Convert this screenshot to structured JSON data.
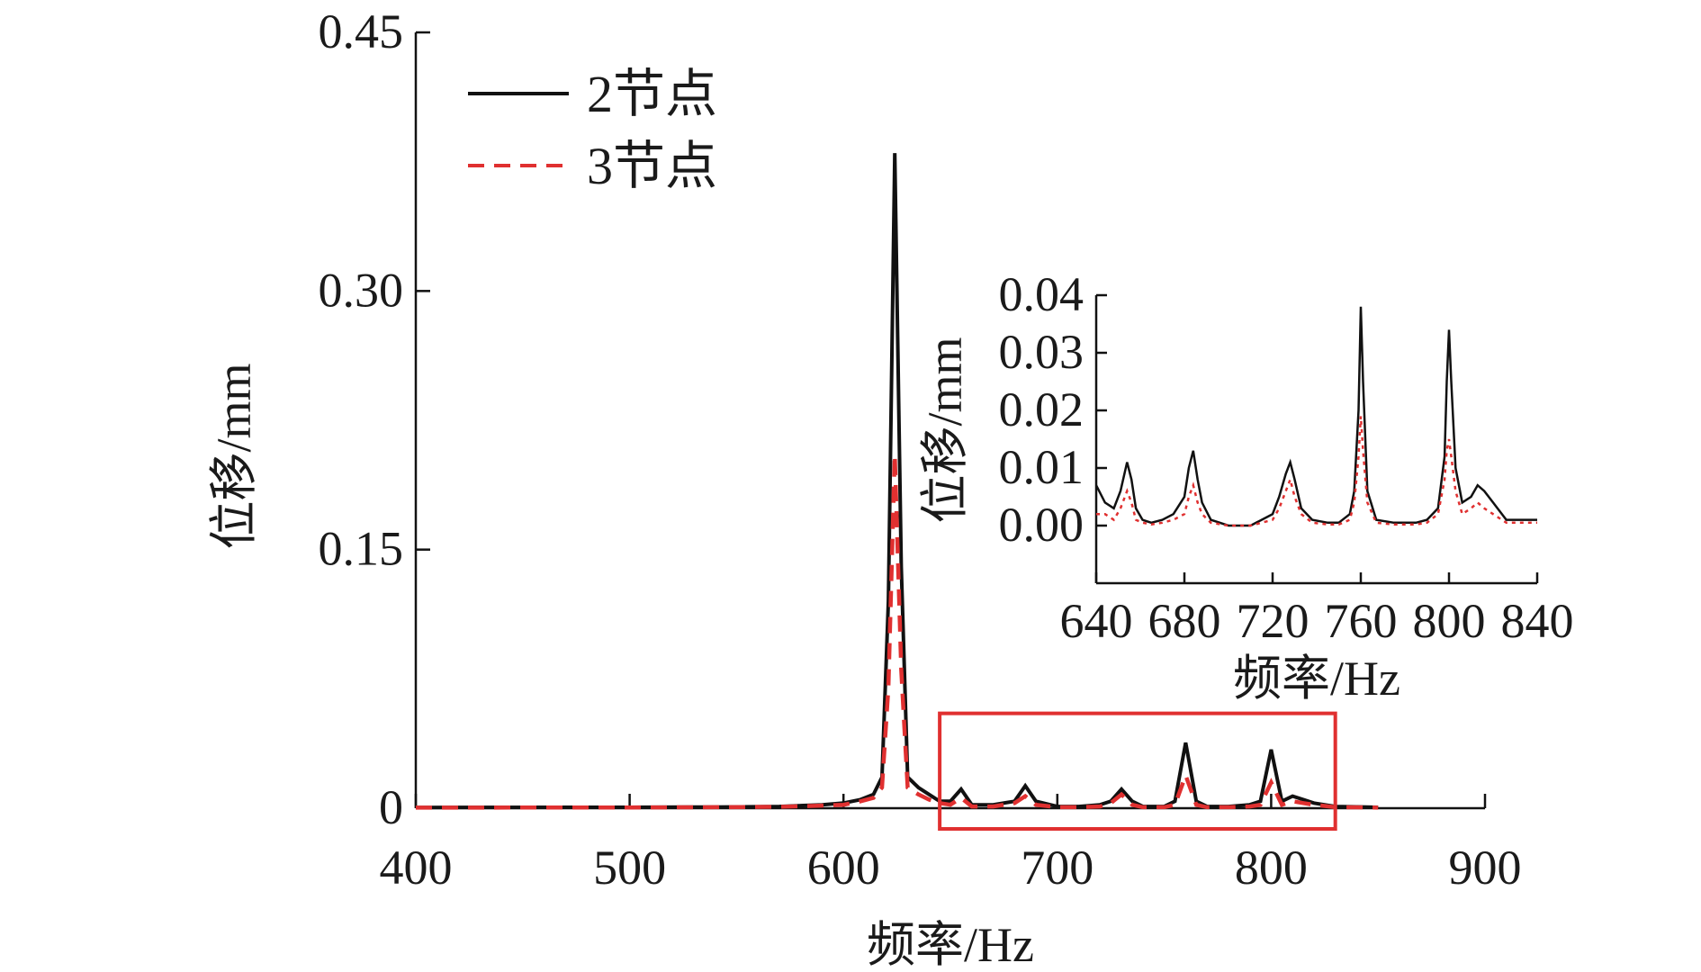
{
  "chart_data": [
    {
      "type": "line",
      "title": "",
      "xlabel": "频率/Hz",
      "ylabel": "位移/mm",
      "xlim": [
        400,
        900
      ],
      "ylim": [
        0,
        0.45
      ],
      "x_ticks": [
        400,
        500,
        600,
        700,
        800,
        900
      ],
      "y_ticks": [
        0,
        0.15,
        0.3,
        0.45
      ],
      "x_tick_labels": [
        "400",
        "500",
        "600",
        "700",
        "800",
        "900"
      ],
      "y_tick_labels": [
        "0",
        "0.15",
        "0.30",
        "0.45"
      ],
      "grid": false,
      "legend_position": "top-left",
      "highlight_box": {
        "x_range": [
          645,
          830
        ],
        "y_range": [
          -0.012,
          0.055
        ],
        "color": "#e03030"
      },
      "series": [
        {
          "name": "2节点",
          "color": "#111111",
          "style": "solid",
          "x": [
            400,
            500,
            540,
            570,
            590,
            600,
            608,
            614,
            618,
            621,
            624,
            627,
            630,
            635,
            640,
            645,
            650,
            655,
            660,
            670,
            680,
            685,
            690,
            700,
            710,
            720,
            725,
            730,
            735,
            740,
            750,
            755,
            760,
            765,
            770,
            780,
            790,
            795,
            800,
            805,
            810,
            815,
            820,
            830,
            840,
            850
          ],
          "y": [
            0.0004,
            0.0005,
            0.0007,
            0.001,
            0.002,
            0.003,
            0.005,
            0.008,
            0.018,
            0.12,
            0.38,
            0.14,
            0.018,
            0.012,
            0.008,
            0.004,
            0.004,
            0.011,
            0.002,
            0.002,
            0.004,
            0.013,
            0.004,
            0.001,
            0.001,
            0.002,
            0.004,
            0.011,
            0.004,
            0.001,
            0.001,
            0.004,
            0.038,
            0.004,
            0.001,
            0.001,
            0.002,
            0.004,
            0.034,
            0.004,
            0.007,
            0.005,
            0.003,
            0.001,
            0.0008,
            0.0005
          ]
        },
        {
          "name": "3节点",
          "color": "#e03030",
          "style": "dashed",
          "x": [
            400,
            500,
            540,
            570,
            590,
            600,
            608,
            614,
            618,
            621,
            624,
            627,
            630,
            635,
            640,
            645,
            650,
            655,
            660,
            670,
            680,
            685,
            690,
            700,
            710,
            720,
            725,
            730,
            735,
            740,
            750,
            755,
            760,
            765,
            770,
            780,
            790,
            795,
            800,
            805,
            810,
            815,
            820,
            830,
            840,
            850
          ],
          "y": [
            0.0003,
            0.0004,
            0.0006,
            0.0008,
            0.0015,
            0.002,
            0.004,
            0.006,
            0.012,
            0.07,
            0.205,
            0.08,
            0.012,
            0.008,
            0.005,
            0.003,
            0.002,
            0.006,
            0.001,
            0.001,
            0.003,
            0.007,
            0.002,
            0.0006,
            0.0006,
            0.001,
            0.003,
            0.008,
            0.002,
            0.0006,
            0.0006,
            0.002,
            0.019,
            0.002,
            0.0006,
            0.0006,
            0.001,
            0.002,
            0.015,
            0.002,
            0.004,
            0.003,
            0.002,
            0.0006,
            0.0005,
            0.0003
          ]
        }
      ]
    },
    {
      "type": "line",
      "title": "",
      "xlabel": "频率/Hz",
      "ylabel": "位移/mm",
      "xlim": [
        640,
        840
      ],
      "ylim": [
        -0.01,
        0.04
      ],
      "x_ticks": [
        640,
        680,
        720,
        760,
        800,
        840
      ],
      "y_ticks": [
        0.0,
        0.01,
        0.02,
        0.03,
        0.04
      ],
      "x_tick_labels": [
        "640",
        "680",
        "720",
        "760",
        "800",
        "840"
      ],
      "y_tick_labels": [
        "0.00",
        "0.01",
        "0.02",
        "0.03",
        "0.04"
      ],
      "grid": false,
      "series": [
        {
          "name": "",
          "color": "#111111",
          "style": "solid",
          "x": [
            640,
            644,
            648,
            651,
            654,
            656,
            658,
            661,
            665,
            670,
            675,
            680,
            682,
            684,
            686,
            688,
            692,
            700,
            710,
            715,
            720,
            723,
            726,
            728,
            730,
            733,
            738,
            745,
            750,
            755,
            757,
            759,
            760,
            761,
            763,
            767,
            775,
            785,
            790,
            795,
            798,
            799,
            800,
            801,
            803,
            806,
            810,
            813,
            816,
            820,
            826,
            840
          ],
          "y": [
            0.007,
            0.004,
            0.003,
            0.006,
            0.011,
            0.008,
            0.003,
            0.001,
            0.0005,
            0.001,
            0.002,
            0.005,
            0.01,
            0.013,
            0.008,
            0.004,
            0.001,
            0.0,
            0.0,
            0.001,
            0.002,
            0.005,
            0.009,
            0.011,
            0.008,
            0.003,
            0.001,
            0.0005,
            0.0005,
            0.002,
            0.006,
            0.02,
            0.038,
            0.025,
            0.006,
            0.001,
            0.0005,
            0.0005,
            0.001,
            0.003,
            0.012,
            0.025,
            0.034,
            0.025,
            0.01,
            0.004,
            0.005,
            0.007,
            0.006,
            0.004,
            0.001,
            0.001
          ]
        },
        {
          "name": "",
          "color": "#e03030",
          "style": "dotted",
          "x": [
            640,
            644,
            648,
            651,
            654,
            656,
            658,
            661,
            665,
            670,
            675,
            680,
            682,
            684,
            686,
            688,
            692,
            700,
            710,
            715,
            720,
            723,
            726,
            728,
            730,
            733,
            738,
            745,
            750,
            755,
            757,
            759,
            760,
            761,
            763,
            767,
            775,
            785,
            790,
            795,
            798,
            799,
            800,
            801,
            803,
            806,
            810,
            813,
            816,
            820,
            826,
            840
          ],
          "y": [
            0.002,
            0.002,
            0.001,
            0.003,
            0.006,
            0.004,
            0.001,
            0.0005,
            0.0002,
            0.0005,
            0.001,
            0.002,
            0.005,
            0.007,
            0.004,
            0.002,
            0.0005,
            0.0,
            0.0,
            0.0005,
            0.001,
            0.003,
            0.006,
            0.008,
            0.005,
            0.002,
            0.0005,
            0.0002,
            0.0002,
            0.001,
            0.004,
            0.012,
            0.019,
            0.013,
            0.004,
            0.0005,
            0.0002,
            0.0002,
            0.0005,
            0.002,
            0.008,
            0.013,
            0.015,
            0.012,
            0.006,
            0.002,
            0.003,
            0.004,
            0.003,
            0.002,
            0.0005,
            0.0005
          ]
        }
      ]
    }
  ]
}
